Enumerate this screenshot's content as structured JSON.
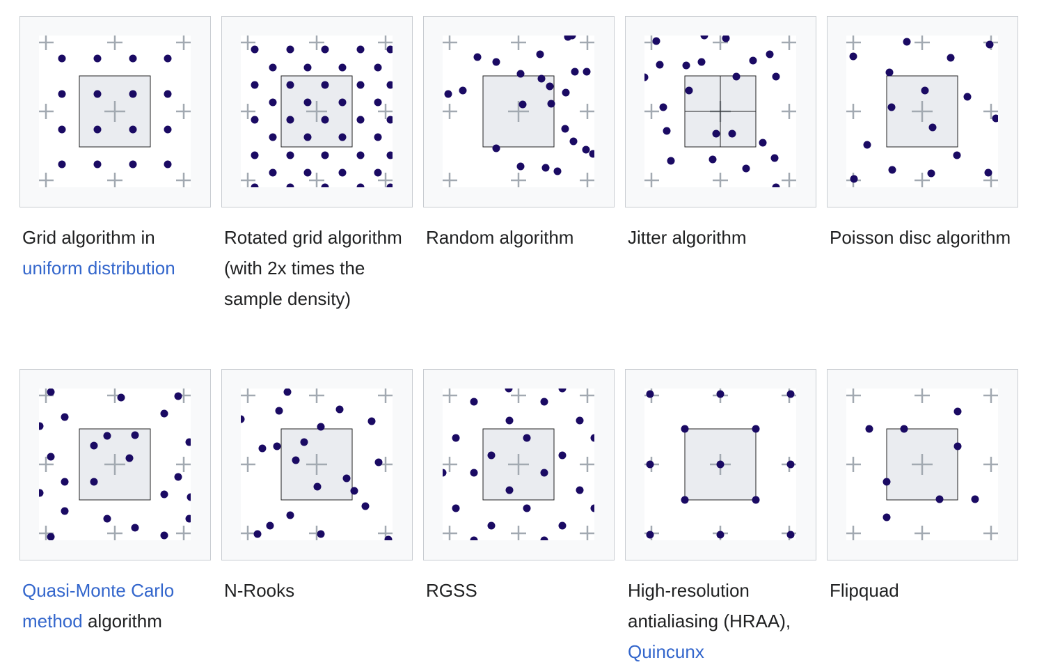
{
  "gallery": {
    "items": [
      {
        "id": "grid",
        "caption": [
          {
            "text": "Grid algorithm in "
          },
          {
            "text": "uniform distribution",
            "link": true
          }
        ]
      },
      {
        "id": "rotated-grid",
        "caption": [
          {
            "text": "Rotated grid algorithm (with 2x times the sample density)"
          }
        ]
      },
      {
        "id": "random",
        "caption": [
          {
            "text": "Random algorithm"
          }
        ]
      },
      {
        "id": "jitter",
        "caption": [
          {
            "text": "Jitter algorithm"
          }
        ]
      },
      {
        "id": "poisson-disc",
        "caption": [
          {
            "text": "Poisson disc algorithm"
          }
        ]
      },
      {
        "id": "quasi-monte-carlo",
        "caption": [
          {
            "text": "Quasi-Monte Carlo method",
            "link": true
          },
          {
            "text": " algorithm"
          }
        ]
      },
      {
        "id": "n-rooks",
        "caption": [
          {
            "text": "N-Rooks"
          }
        ]
      },
      {
        "id": "rgss",
        "caption": [
          {
            "text": "RGSS"
          }
        ]
      },
      {
        "id": "hraa",
        "caption": [
          {
            "text": "High-resolution antialiasing (HRAA), "
          },
          {
            "text": "Quincunx",
            "link": true
          }
        ]
      },
      {
        "id": "flipquad",
        "caption": [
          {
            "text": "Flipquad"
          }
        ]
      }
    ]
  },
  "colors": {
    "dot": "#1a0a63",
    "cross": "#a2a9b1",
    "link": "#3366cc",
    "pixel_fill": "#eaecf0",
    "pixel_stroke": "#202122",
    "thumb_bg": "#f8f9fa",
    "thumb_border": "#c8ccd1"
  }
}
